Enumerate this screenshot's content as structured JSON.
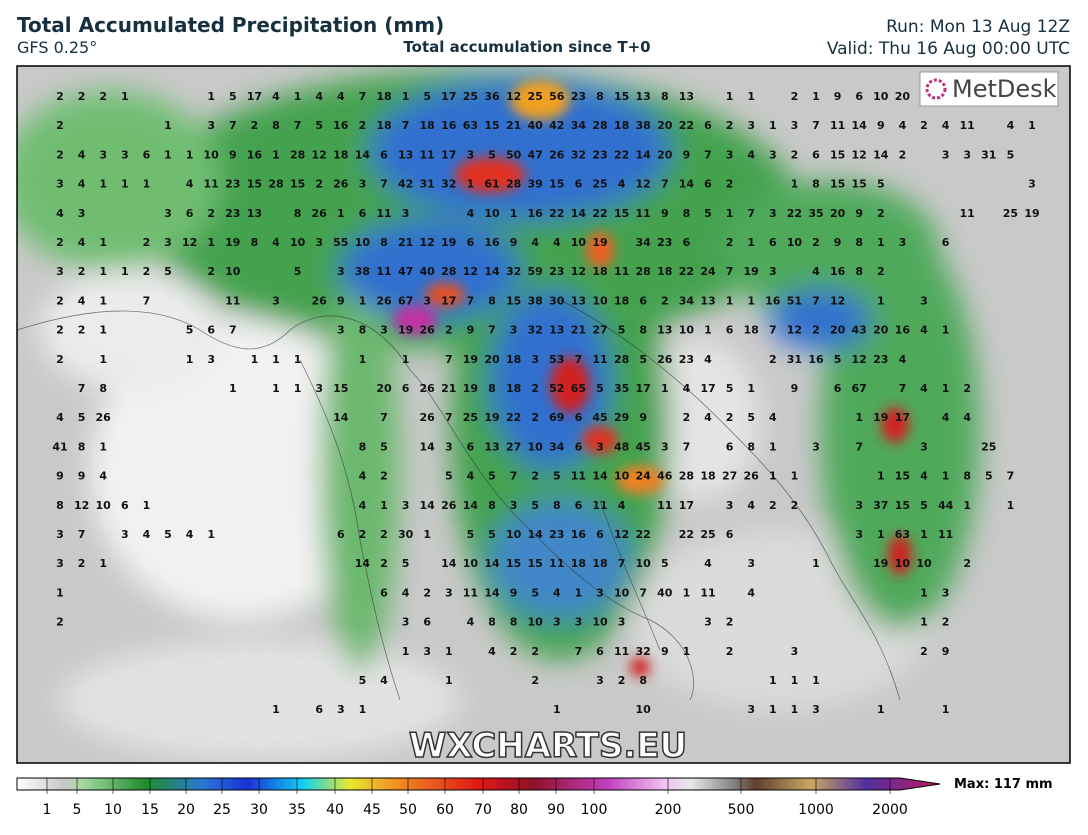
{
  "header": {
    "title": "Total Accumulated Precipitation (mm)",
    "model": "GFS 0.25°",
    "subtitle": "Total accumulation since T+0",
    "run": "Run: Mon 13 Aug 12Z",
    "valid": "Valid: Thu 16 Aug 00:00 UTC"
  },
  "logo": "MetDesk",
  "watermark": "WXCHARTS.EU",
  "legend": {
    "ticks": [
      1,
      5,
      10,
      15,
      20,
      25,
      30,
      35,
      40,
      45,
      50,
      60,
      70,
      80,
      90,
      100,
      200,
      500,
      1000,
      2000
    ],
    "max": "Max: 117 mm"
  },
  "grid": {
    "rows": [
      [
        2,
        2,
        2,
        1,
        null,
        null,
        null,
        1,
        5,
        17,
        4,
        1,
        4,
        4,
        7,
        18,
        1,
        5,
        17,
        25,
        36,
        12,
        25,
        56,
        23,
        8,
        15,
        13,
        8,
        13,
        null,
        1,
        1,
        null,
        2,
        1,
        9,
        6,
        10,
        20
      ],
      [
        2,
        null,
        null,
        null,
        null,
        1,
        null,
        3,
        7,
        2,
        8,
        7,
        5,
        16,
        2,
        18,
        7,
        18,
        16,
        63,
        15,
        21,
        40,
        42,
        34,
        28,
        18,
        38,
        20,
        22,
        6,
        2,
        3,
        1,
        3,
        7,
        11,
        14,
        9,
        4,
        2,
        4,
        11,
        null,
        4,
        1
      ],
      [
        2,
        4,
        3,
        3,
        6,
        1,
        1,
        10,
        9,
        16,
        1,
        28,
        12,
        18,
        14,
        6,
        13,
        11,
        17,
        3,
        5,
        50,
        47,
        26,
        32,
        23,
        22,
        14,
        20,
        9,
        7,
        3,
        4,
        3,
        2,
        6,
        15,
        12,
        14,
        2,
        null,
        3,
        3,
        31,
        5
      ],
      [
        3,
        4,
        1,
        1,
        1,
        null,
        4,
        11,
        23,
        15,
        28,
        15,
        2,
        26,
        3,
        7,
        42,
        31,
        32,
        1,
        61,
        28,
        39,
        15,
        6,
        25,
        4,
        12,
        7,
        14,
        6,
        2,
        null,
        null,
        1,
        8,
        15,
        15,
        5,
        null,
        null,
        null,
        null,
        null,
        null,
        3
      ],
      [
        4,
        3,
        null,
        null,
        null,
        3,
        6,
        2,
        23,
        13,
        null,
        8,
        26,
        1,
        6,
        11,
        3,
        null,
        null,
        4,
        10,
        1,
        16,
        22,
        14,
        22,
        15,
        11,
        9,
        8,
        5,
        1,
        7,
        3,
        22,
        35,
        20,
        9,
        2,
        null,
        null,
        null,
        11,
        null,
        25,
        19
      ],
      [
        2,
        4,
        1,
        null,
        2,
        3,
        12,
        1,
        19,
        8,
        4,
        10,
        3,
        55,
        10,
        8,
        21,
        12,
        19,
        6,
        16,
        9,
        4,
        4,
        10,
        19,
        null,
        34,
        23,
        6,
        null,
        2,
        1,
        6,
        10,
        2,
        9,
        8,
        1,
        3,
        null,
        6
      ],
      [
        3,
        2,
        1,
        1,
        2,
        5,
        null,
        2,
        10,
        null,
        null,
        5,
        null,
        3,
        38,
        11,
        47,
        40,
        28,
        12,
        14,
        32,
        59,
        23,
        12,
        18,
        11,
        28,
        18,
        22,
        24,
        7,
        19,
        3,
        null,
        4,
        16,
        8,
        2
      ],
      [
        2,
        4,
        1,
        null,
        7,
        null,
        null,
        null,
        11,
        null,
        3,
        null,
        26,
        9,
        1,
        26,
        67,
        3,
        17,
        7,
        8,
        15,
        38,
        30,
        13,
        10,
        18,
        6,
        2,
        34,
        13,
        1,
        1,
        16,
        51,
        7,
        12,
        null,
        1,
        null,
        3
      ],
      [
        2,
        2,
        1,
        null,
        null,
        null,
        5,
        6,
        7,
        null,
        null,
        null,
        null,
        3,
        8,
        3,
        19,
        26,
        2,
        9,
        7,
        3,
        32,
        13,
        21,
        27,
        5,
        8,
        13,
        10,
        1,
        6,
        18,
        7,
        12,
        2,
        20,
        43,
        20,
        16,
        4,
        1
      ],
      [
        2,
        null,
        1,
        null,
        null,
        null,
        1,
        3,
        null,
        1,
        1,
        1,
        null,
        null,
        1,
        null,
        1,
        null,
        7,
        19,
        20,
        18,
        3,
        53,
        7,
        11,
        28,
        5,
        26,
        23,
        4,
        null,
        null,
        2,
        31,
        16,
        5,
        12,
        23,
        4
      ],
      [
        null,
        7,
        8,
        null,
        null,
        null,
        null,
        null,
        1,
        null,
        1,
        1,
        3,
        15,
        null,
        20,
        6,
        26,
        21,
        19,
        8,
        18,
        2,
        52,
        65,
        5,
        35,
        17,
        1,
        4,
        17,
        5,
        1,
        null,
        9,
        null,
        6,
        67,
        null,
        7,
        4,
        1,
        2
      ],
      [
        4,
        5,
        26,
        null,
        null,
        null,
        null,
        null,
        null,
        null,
        null,
        null,
        null,
        14,
        null,
        7,
        null,
        26,
        7,
        25,
        19,
        22,
        2,
        69,
        6,
        45,
        29,
        9,
        null,
        2,
        4,
        2,
        5,
        4,
        null,
        null,
        null,
        1,
        19,
        17,
        null,
        4,
        4
      ],
      [
        41,
        8,
        1,
        null,
        null,
        null,
        null,
        null,
        null,
        null,
        null,
        null,
        null,
        null,
        8,
        5,
        null,
        14,
        3,
        6,
        13,
        27,
        10,
        34,
        6,
        3,
        48,
        45,
        3,
        7,
        null,
        6,
        8,
        1,
        null,
        3,
        null,
        7,
        null,
        null,
        3,
        null,
        null,
        25
      ],
      [
        9,
        9,
        4,
        null,
        null,
        null,
        null,
        null,
        null,
        null,
        null,
        null,
        null,
        null,
        4,
        2,
        null,
        null,
        5,
        4,
        5,
        7,
        2,
        5,
        11,
        14,
        10,
        24,
        46,
        28,
        18,
        27,
        26,
        1,
        1,
        null,
        null,
        null,
        1,
        15,
        4,
        1,
        8,
        5,
        7
      ],
      [
        8,
        12,
        10,
        6,
        1,
        null,
        null,
        null,
        null,
        null,
        null,
        null,
        null,
        null,
        4,
        1,
        3,
        14,
        26,
        14,
        8,
        3,
        5,
        8,
        6,
        11,
        4,
        null,
        11,
        17,
        null,
        3,
        4,
        2,
        2,
        null,
        null,
        3,
        37,
        15,
        5,
        44,
        1,
        null,
        1
      ],
      [
        3,
        7,
        null,
        3,
        4,
        5,
        4,
        1,
        null,
        null,
        null,
        null,
        null,
        6,
        2,
        2,
        30,
        1,
        null,
        5,
        5,
        10,
        14,
        23,
        16,
        6,
        12,
        22,
        null,
        22,
        25,
        6,
        null,
        null,
        null,
        null,
        null,
        3,
        1,
        63,
        1,
        11
      ],
      [
        3,
        2,
        1,
        null,
        null,
        null,
        null,
        null,
        null,
        null,
        null,
        null,
        null,
        null,
        14,
        2,
        5,
        null,
        14,
        10,
        14,
        15,
        15,
        11,
        18,
        18,
        7,
        10,
        5,
        null,
        4,
        null,
        3,
        null,
        null,
        1,
        null,
        null,
        19,
        10,
        10,
        null,
        2
      ],
      [
        1,
        null,
        null,
        null,
        null,
        null,
        null,
        null,
        null,
        null,
        null,
        null,
        null,
        null,
        null,
        6,
        4,
        2,
        3,
        11,
        14,
        9,
        5,
        4,
        1,
        3,
        10,
        7,
        40,
        1,
        11,
        null,
        4,
        null,
        null,
        null,
        null,
        null,
        null,
        null,
        1,
        3
      ],
      [
        2,
        null,
        null,
        null,
        null,
        null,
        null,
        null,
        null,
        null,
        null,
        null,
        null,
        null,
        null,
        null,
        3,
        6,
        null,
        4,
        8,
        8,
        10,
        3,
        3,
        10,
        3,
        null,
        null,
        null,
        3,
        2,
        null,
        null,
        null,
        null,
        null,
        null,
        null,
        null,
        1,
        2
      ],
      [
        null,
        null,
        null,
        null,
        null,
        null,
        null,
        null,
        null,
        null,
        null,
        null,
        null,
        null,
        null,
        null,
        1,
        3,
        1,
        null,
        4,
        2,
        2,
        null,
        7,
        6,
        11,
        32,
        9,
        1,
        null,
        2,
        null,
        null,
        3,
        null,
        null,
        null,
        null,
        null,
        2,
        9
      ],
      [
        null,
        null,
        null,
        null,
        null,
        null,
        null,
        null,
        null,
        null,
        null,
        null,
        null,
        null,
        5,
        4,
        null,
        null,
        1,
        null,
        null,
        null,
        2,
        null,
        null,
        3,
        2,
        8,
        null,
        null,
        null,
        null,
        null,
        1,
        1,
        1
      ],
      [
        null,
        null,
        null,
        null,
        null,
        null,
        null,
        null,
        null,
        null,
        1,
        null,
        6,
        3,
        1,
        null,
        null,
        null,
        null,
        null,
        null,
        null,
        null,
        1,
        null,
        null,
        null,
        10,
        null,
        null,
        null,
        null,
        3,
        1,
        1,
        3,
        null,
        null,
        1,
        null,
        null,
        1
      ]
    ]
  }
}
